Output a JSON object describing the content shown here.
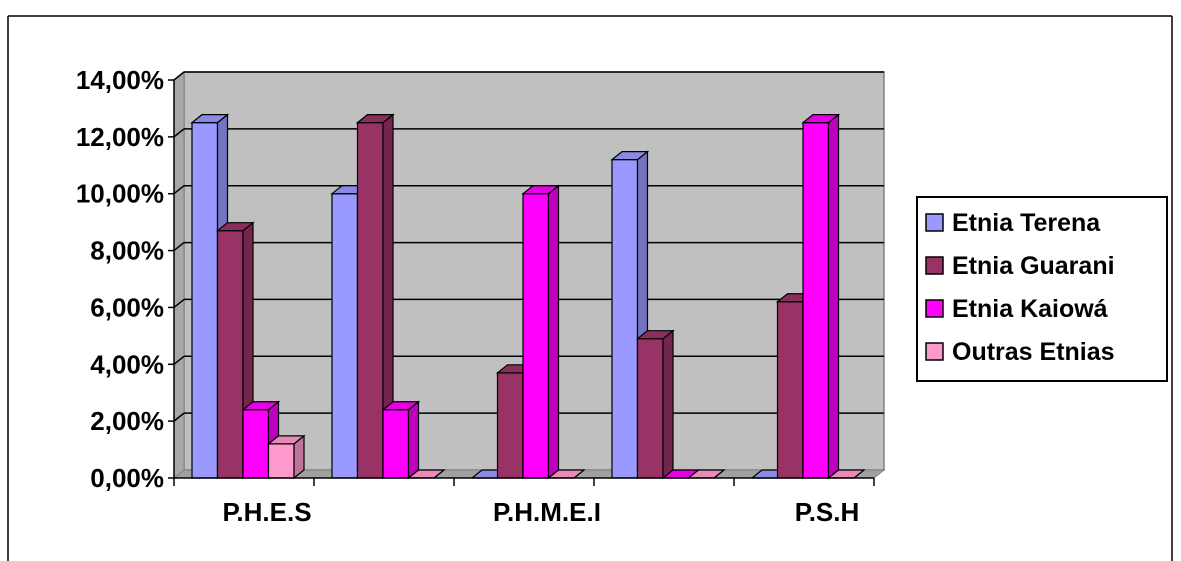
{
  "chart_data": {
    "type": "bar",
    "title": "",
    "xlabel": "",
    "ylabel": "",
    "categories": [
      "P.H.E.S",
      "",
      "P.H.M.E.I",
      "",
      "P.S.H"
    ],
    "y_ticks": [
      "0,00%",
      "2,00%",
      "4,00%",
      "6,00%",
      "8,00%",
      "10,00%",
      "12,00%",
      "14,00%"
    ],
    "ylim": [
      0,
      14
    ],
    "grid": true,
    "three_d": true,
    "legend_position": "right",
    "series": [
      {
        "name": "Etnia Terena",
        "color": "#9999ff",
        "values": [
          12.5,
          10.0,
          0.0,
          11.2,
          0.0
        ]
      },
      {
        "name": "Etnia Guarani",
        "color": "#993366",
        "values": [
          8.7,
          12.5,
          3.7,
          4.9,
          6.2
        ]
      },
      {
        "name": "Etnia Kaiowá",
        "color": "#ff00ff",
        "values": [
          2.4,
          2.4,
          10.0,
          0.0,
          12.5
        ]
      },
      {
        "name": "Outras Etnias",
        "color": "#ff99cc",
        "values": [
          1.2,
          0.0,
          0.0,
          0.0,
          0.0
        ]
      }
    ]
  }
}
